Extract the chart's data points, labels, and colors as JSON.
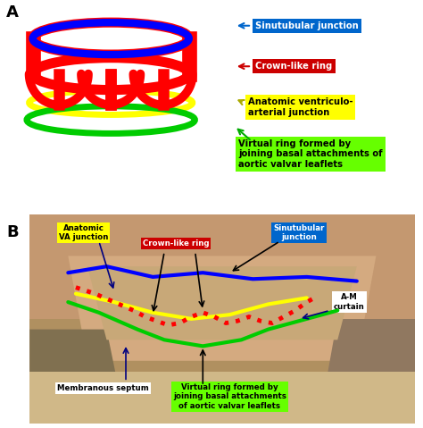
{
  "fig_width": 4.74,
  "fig_height": 4.79,
  "bg_color": "#ffffff",
  "panel_a_label": "A",
  "panel_b_label": "B",
  "labels_A": {
    "sinutubular": "Sinutubular junction",
    "crown": "Crown-like ring",
    "anatomic": "Anatomic ventriculo-\narterial junction",
    "virtual": "Virtual ring formed by\njoining basal attachments of\naortic valvar leaflets"
  },
  "label_colors_A": {
    "sinutubular_bg": "#0066cc",
    "sinutubular_fg": "#ffffff",
    "crown_bg": "#cc0000",
    "crown_fg": "#ffffff",
    "anatomic_bg": "#ffff00",
    "anatomic_fg": "#000000",
    "virtual_bg": "#66ff00",
    "virtual_fg": "#000000"
  },
  "labels_B": {
    "anatomic_va": "Anatomic\nVA junction",
    "crown": "Crown-like ring",
    "sinutubular": "Sinutubular\njunction",
    "am_curtain": "A-M\ncurtain",
    "membranous": "Membranous septum",
    "virtual": "Virtual ring formed by\njoining basal attachments\nof aortic valvar leaflets"
  },
  "label_colors_B": {
    "anatomic_va_bg": "#ffff00",
    "anatomic_va_fg": "#000000",
    "crown_bg": "#cc0000",
    "crown_fg": "#ffffff",
    "sinutubular_bg": "#0066cc",
    "sinutubular_fg": "#ffffff",
    "am_curtain_bg": "#ffffff",
    "am_curtain_fg": "#000000",
    "membranous_bg": "#ffffff",
    "membranous_fg": "#000000",
    "virtual_bg": "#66ff00",
    "virtual_fg": "#000000"
  },
  "diagram_colors": {
    "blue": "#0000ff",
    "red": "#ff0000",
    "yellow": "#ffff00",
    "green": "#00cc00"
  },
  "photo_bg": "#c8a870"
}
